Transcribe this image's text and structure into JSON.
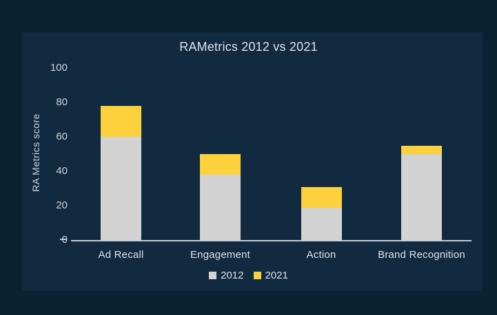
{
  "chart_data": {
    "type": "bar",
    "stacked": true,
    "title": "RAMetrics 2012 vs 2021",
    "xlabel": "",
    "ylabel": "RA Metrics score",
    "categories": [
      "Ad Recall",
      "Engagement",
      "Action",
      "Brand Recognition"
    ],
    "series": [
      {
        "name": "2012",
        "color": "#d3d3d4",
        "values": [
          60,
          38,
          19,
          50
        ]
      },
      {
        "name": "2021",
        "color": "#fcd13c",
        "values": [
          18,
          12,
          12,
          5
        ]
      }
    ],
    "stack_totals": [
      78,
      50,
      31,
      55
    ],
    "ylim": [
      0,
      100
    ],
    "yticks": [
      0,
      20,
      40,
      60,
      80,
      100
    ],
    "grid": false,
    "legend_position": "bottom"
  },
  "colors": {
    "background_outer": "#0b2233",
    "background_panel": "#112a40",
    "title_text": "#dde2e8",
    "tick_text": "#ccd4db",
    "axis_line": "#c6cdd3"
  }
}
